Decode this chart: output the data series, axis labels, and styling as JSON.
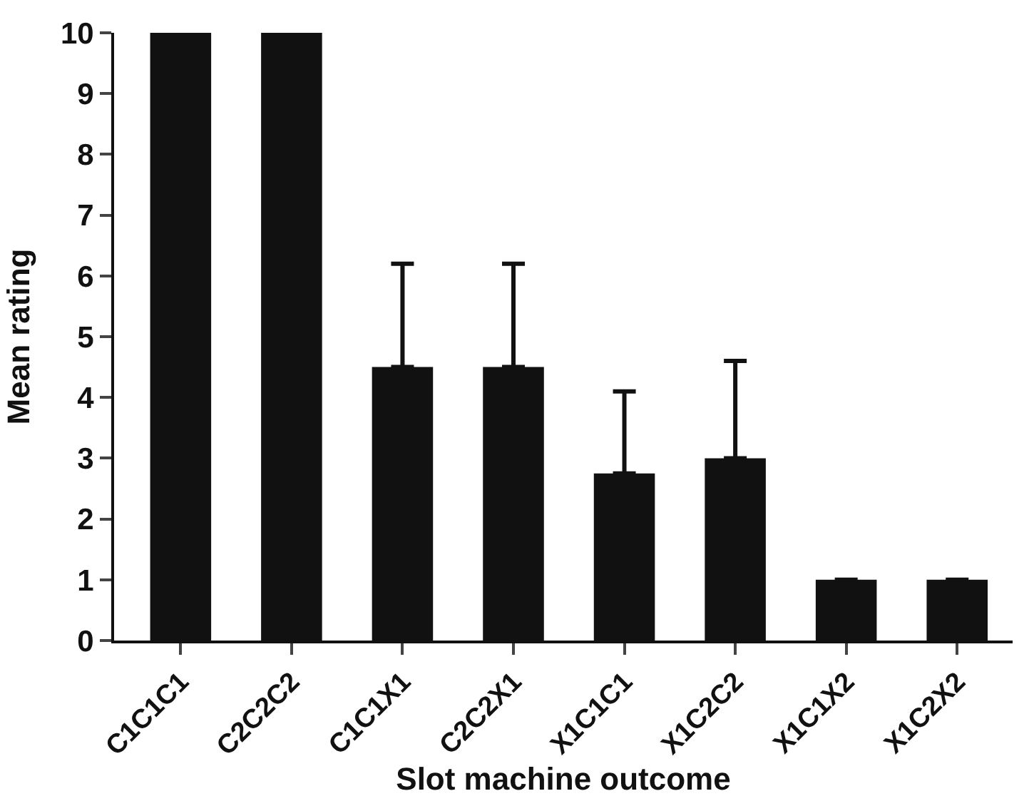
{
  "chart_data": {
    "type": "bar",
    "xlabel": "Slot machine outcome",
    "ylabel": "Mean rating",
    "categories": [
      "C1C1C1",
      "C2C2C2",
      "C1C1X1",
      "C2C2X1",
      "X1C1C1",
      "X1C2C2",
      "X1C1X2",
      "X1C2X2"
    ],
    "values": [
      10,
      10,
      4.5,
      4.5,
      2.75,
      3.0,
      1,
      1
    ],
    "errors": [
      null,
      null,
      [
        4.5,
        6.2
      ],
      [
        4.5,
        6.2
      ],
      [
        2.75,
        4.1
      ],
      [
        3.0,
        4.6
      ],
      null,
      null
    ],
    "color": "#111111",
    "ylim": [
      0,
      10
    ],
    "yticks": [
      0,
      1,
      2,
      3,
      4,
      5,
      6,
      7,
      8,
      9,
      10
    ],
    "legend": false
  }
}
